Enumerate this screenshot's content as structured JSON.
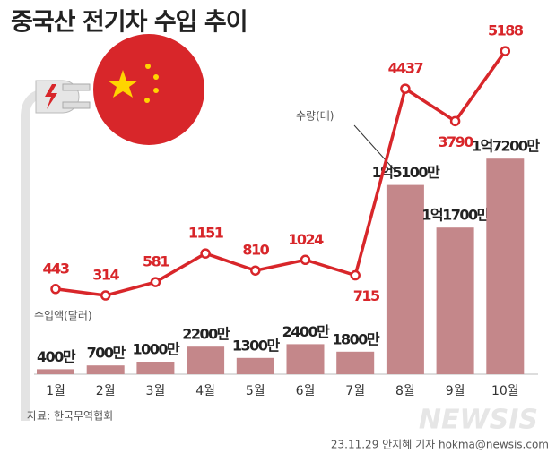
{
  "chart_data": {
    "type": "combo",
    "title": "중국산 전기차 수입 추이",
    "categories": [
      "1월",
      "2월",
      "3월",
      "4월",
      "5월",
      "6월",
      "7월",
      "8월",
      "9월",
      "10월"
    ],
    "series": [
      {
        "name": "수입액(달러)",
        "type": "bar",
        "color": "#c4878a",
        "values": [
          4000000,
          7000000,
          10000000,
          22000000,
          13000000,
          24000000,
          18000000,
          151000000,
          117000000,
          172000000
        ],
        "value_labels": [
          "400만",
          "700만",
          "1000만",
          "2200만",
          "1300만",
          "2400만",
          "1800만",
          "1억5100만",
          "1억1700만",
          "1억7200만"
        ]
      },
      {
        "name": "수량(대)",
        "type": "line",
        "color": "#d8262a",
        "values": [
          443,
          314,
          581,
          1151,
          810,
          1024,
          715,
          4437,
          3790,
          5188
        ]
      }
    ],
    "source": "자료: 한국무역협회",
    "credit": "23.11.29 안지혜 기자 hokma@newsis.com",
    "watermark": "NEWSIS"
  }
}
